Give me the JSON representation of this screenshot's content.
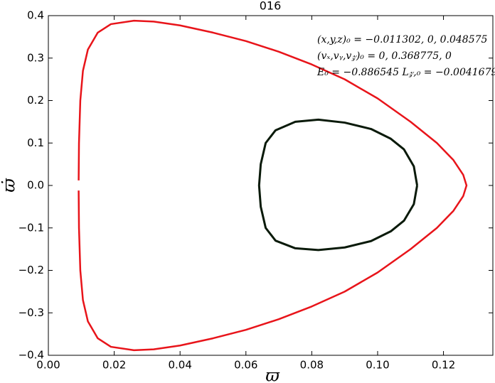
{
  "chart_data": {
    "type": "line",
    "title": "016",
    "x_label": "ϖ",
    "y_label": "ϖ̇",
    "annotations": [
      "(x,y,z)₀ = −0.011302, 0, 0.048575",
      "(vₓ,vᵧ,v𝓏)₀ = 0, 0.368775, 0",
      "E₀ = −0.886545   L𝓏,₀ = −0.0041679"
    ],
    "xlim": [
      0,
      0.135
    ],
    "ylim": [
      -0.4,
      0.4
    ],
    "xticks": [
      {
        "value": 0,
        "label": "0.00"
      },
      0.02,
      0.04,
      0.06,
      0.08,
      {
        "value": 0.1,
        "label": "0.10"
      },
      0.12
    ],
    "yticks": [
      {
        "value": -0.4,
        "label": "−0.4"
      },
      {
        "value": -0.3,
        "label": "−0.3"
      },
      {
        "value": -0.2,
        "label": "−0.2"
      },
      {
        "value": -0.1,
        "label": "−0.1"
      },
      {
        "value": 0,
        "label": "0.0"
      },
      0.1,
      0.2,
      0.3,
      0.4
    ],
    "series": [
      {
        "color": "#e8141a",
        "x": [
          0.0092,
          0.0093,
          0.0097,
          0.0105,
          0.012,
          0.015,
          0.019,
          0.026,
          0.032,
          0.04,
          0.05,
          0.06,
          0.07,
          0.08,
          0.09,
          0.1,
          0.11,
          0.118,
          0.123,
          0.126,
          0.127,
          0.126,
          0.123,
          0.118,
          0.11,
          0.1,
          0.09,
          0.08,
          0.07,
          0.06,
          0.05,
          0.04,
          0.032,
          0.026,
          0.019,
          0.015,
          0.012,
          0.0105,
          0.0097,
          0.0093,
          0.0092
        ],
        "values": [
          0.012,
          0.1,
          0.2,
          0.27,
          0.32,
          0.36,
          0.38,
          0.388,
          0.386,
          0.377,
          0.36,
          0.34,
          0.315,
          0.285,
          0.25,
          0.205,
          0.15,
          0.1,
          0.06,
          0.025,
          0,
          -0.025,
          -0.06,
          -0.1,
          -0.15,
          -0.205,
          -0.25,
          -0.285,
          -0.315,
          -0.34,
          -0.36,
          -0.377,
          -0.386,
          -0.388,
          -0.38,
          -0.36,
          -0.32,
          -0.27,
          -0.2,
          -0.1,
          -0.012
        ]
      },
      {
        "color": "#0a1a0a",
        "x": [
          0.112,
          0.111,
          0.108,
          0.104,
          0.098,
          0.09,
          0.082,
          0.075,
          0.069,
          0.066,
          0.0645,
          0.064,
          0.0645,
          0.066,
          0.069,
          0.075,
          0.082,
          0.09,
          0.098,
          0.104,
          0.108,
          0.111,
          0.112
        ],
        "values": [
          0,
          0.045,
          0.085,
          0.11,
          0.133,
          0.148,
          0.155,
          0.15,
          0.13,
          0.1,
          0.05,
          0,
          -0.05,
          -0.1,
          -0.13,
          -0.148,
          -0.152,
          -0.146,
          -0.131,
          -0.108,
          -0.083,
          -0.044,
          0
        ]
      }
    ]
  }
}
